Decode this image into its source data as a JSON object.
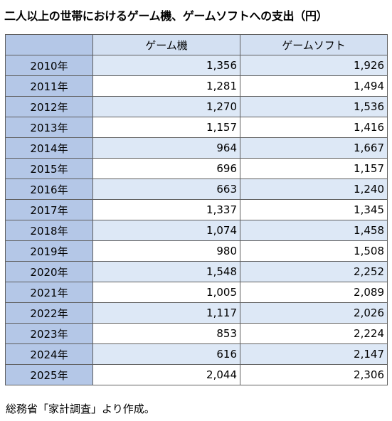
{
  "title": "二人以上の世帯におけるゲーム機、ゲームソフトへの支出（円）",
  "source": "総務省「家計調査」より作成。",
  "chart_data": {
    "type": "table",
    "title": "二人以上の世帯におけるゲーム機、ゲームソフトへの支出（円）",
    "columns": [
      "",
      "ゲーム機",
      "ゲームソフト"
    ],
    "rows": [
      {
        "year": "2010年",
        "console": "1,356",
        "software": "1,926"
      },
      {
        "year": "2011年",
        "console": "1,281",
        "software": "1,494"
      },
      {
        "year": "2012年",
        "console": "1,270",
        "software": "1,536"
      },
      {
        "year": "2013年",
        "console": "1,157",
        "software": "1,416"
      },
      {
        "year": "2014年",
        "console": "964",
        "software": "1,667"
      },
      {
        "year": "2015年",
        "console": "696",
        "software": "1,157"
      },
      {
        "year": "2016年",
        "console": "663",
        "software": "1,240"
      },
      {
        "year": "2017年",
        "console": "1,337",
        "software": "1,345"
      },
      {
        "year": "2018年",
        "console": "1,074",
        "software": "1,458"
      },
      {
        "year": "2019年",
        "console": "980",
        "software": "1,508"
      },
      {
        "year": "2020年",
        "console": "1,548",
        "software": "2,252"
      },
      {
        "year": "2021年",
        "console": "1,005",
        "software": "2,089"
      },
      {
        "year": "2022年",
        "console": "1,117",
        "software": "2,026"
      },
      {
        "year": "2023年",
        "console": "853",
        "software": "2,224"
      },
      {
        "year": "2024年",
        "console": "616",
        "software": "2,147"
      },
      {
        "year": "2025年",
        "console": "2,044",
        "software": "2,306"
      }
    ]
  }
}
